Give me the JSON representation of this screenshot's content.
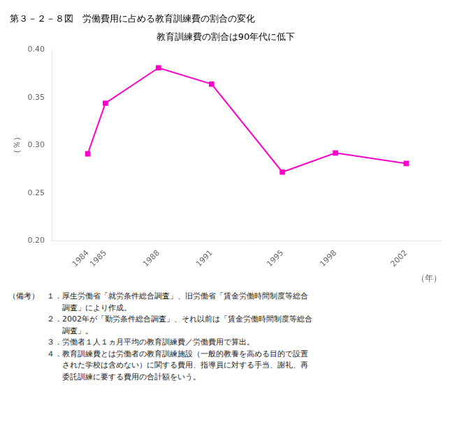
{
  "chart_data": {
    "type": "line",
    "title": "第３－２－８図　労働費用に占める教育訓練費の割合の変化",
    "subtitle": "教育訓練費の割合は90年代に低下",
    "y_label": "（％）",
    "x_label": "（年）",
    "x": [
      1984,
      1985,
      1988,
      1991,
      1995,
      1998,
      2002
    ],
    "values": [
      0.291,
      0.344,
      0.381,
      0.364,
      0.272,
      0.292,
      0.281
    ],
    "color": "#FF00CC",
    "marker": "square",
    "xlim": [
      1982,
      2004
    ],
    "xticks": [
      1984,
      1985,
      1988,
      1991,
      1995,
      1998,
      2002
    ],
    "ylim": [
      0.2,
      0.4
    ],
    "yticks": [
      {
        "value": 0.2,
        "label": "0.20"
      },
      0.25,
      {
        "value": 0.3,
        "label": "0.30"
      },
      0.35,
      {
        "value": 0.4,
        "label": "0.40"
      }
    ],
    "grid": false,
    "annotations": [
      "（備考）　１．厚生労働省「就労条件総合調査」、旧労働省「賃金労働時間制度等総合",
      "　　　　　　　調査」により作成。",
      "　　　　　２．2002年が「勤労条件総合調査」、それ以前は「賃金労働時間制度等総合",
      "　　　　　　　調査」。",
      "　　　　　３．労働者１人１ヵ月平均の教育訓練費／労働費用で算出。",
      "　　　　　４．教育訓練費とは労働者の教育訓練施設（一般的教養を高める目的で設置",
      "　　　　　　　された学校は含めない）に関する費用、指導員に対する手当、謝礼、再",
      "　　　　　　　委託訓練に要する費用の合計額をいう。"
    ]
  }
}
